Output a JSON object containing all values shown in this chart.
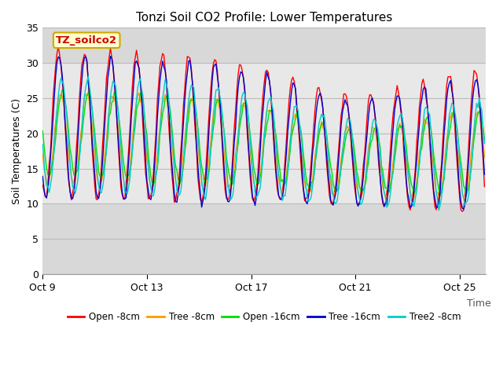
{
  "title": "Tonzi Soil CO2 Profile: Lower Temperatures",
  "ylabel": "Soil Temperatures (C)",
  "xlabel": "Time",
  "ylim": [
    0,
    35
  ],
  "yticks": [
    0,
    5,
    10,
    15,
    20,
    25,
    30,
    35
  ],
  "xtick_labels": [
    "Oct 9",
    "Oct 13",
    "Oct 17",
    "Oct 21",
    "Oct 25"
  ],
  "xtick_positions": [
    0,
    4,
    8,
    12,
    16
  ],
  "label_box_text": "TZ_soilco2",
  "label_box_color": "#ffffcc",
  "label_box_border": "#ccaa00",
  "label_text_color": "#cc0000",
  "series": [
    {
      "name": "Open -8cm",
      "color": "#ff0000"
    },
    {
      "name": "Tree -8cm",
      "color": "#ff9900"
    },
    {
      "name": "Open -16cm",
      "color": "#00dd00"
    },
    {
      "name": "Tree -16cm",
      "color": "#0000cc"
    },
    {
      "name": "Tree2 -8cm",
      "color": "#00cccc"
    }
  ],
  "plot_bg_outer": "#d8d8d8",
  "plot_bg_inner": "#e8e8e8",
  "inner_band_low": 10,
  "inner_band_high": 30,
  "grid_color": "#bbbbbb",
  "title_fontsize": 11,
  "axis_fontsize": 9,
  "legend_fontsize": 8.5
}
